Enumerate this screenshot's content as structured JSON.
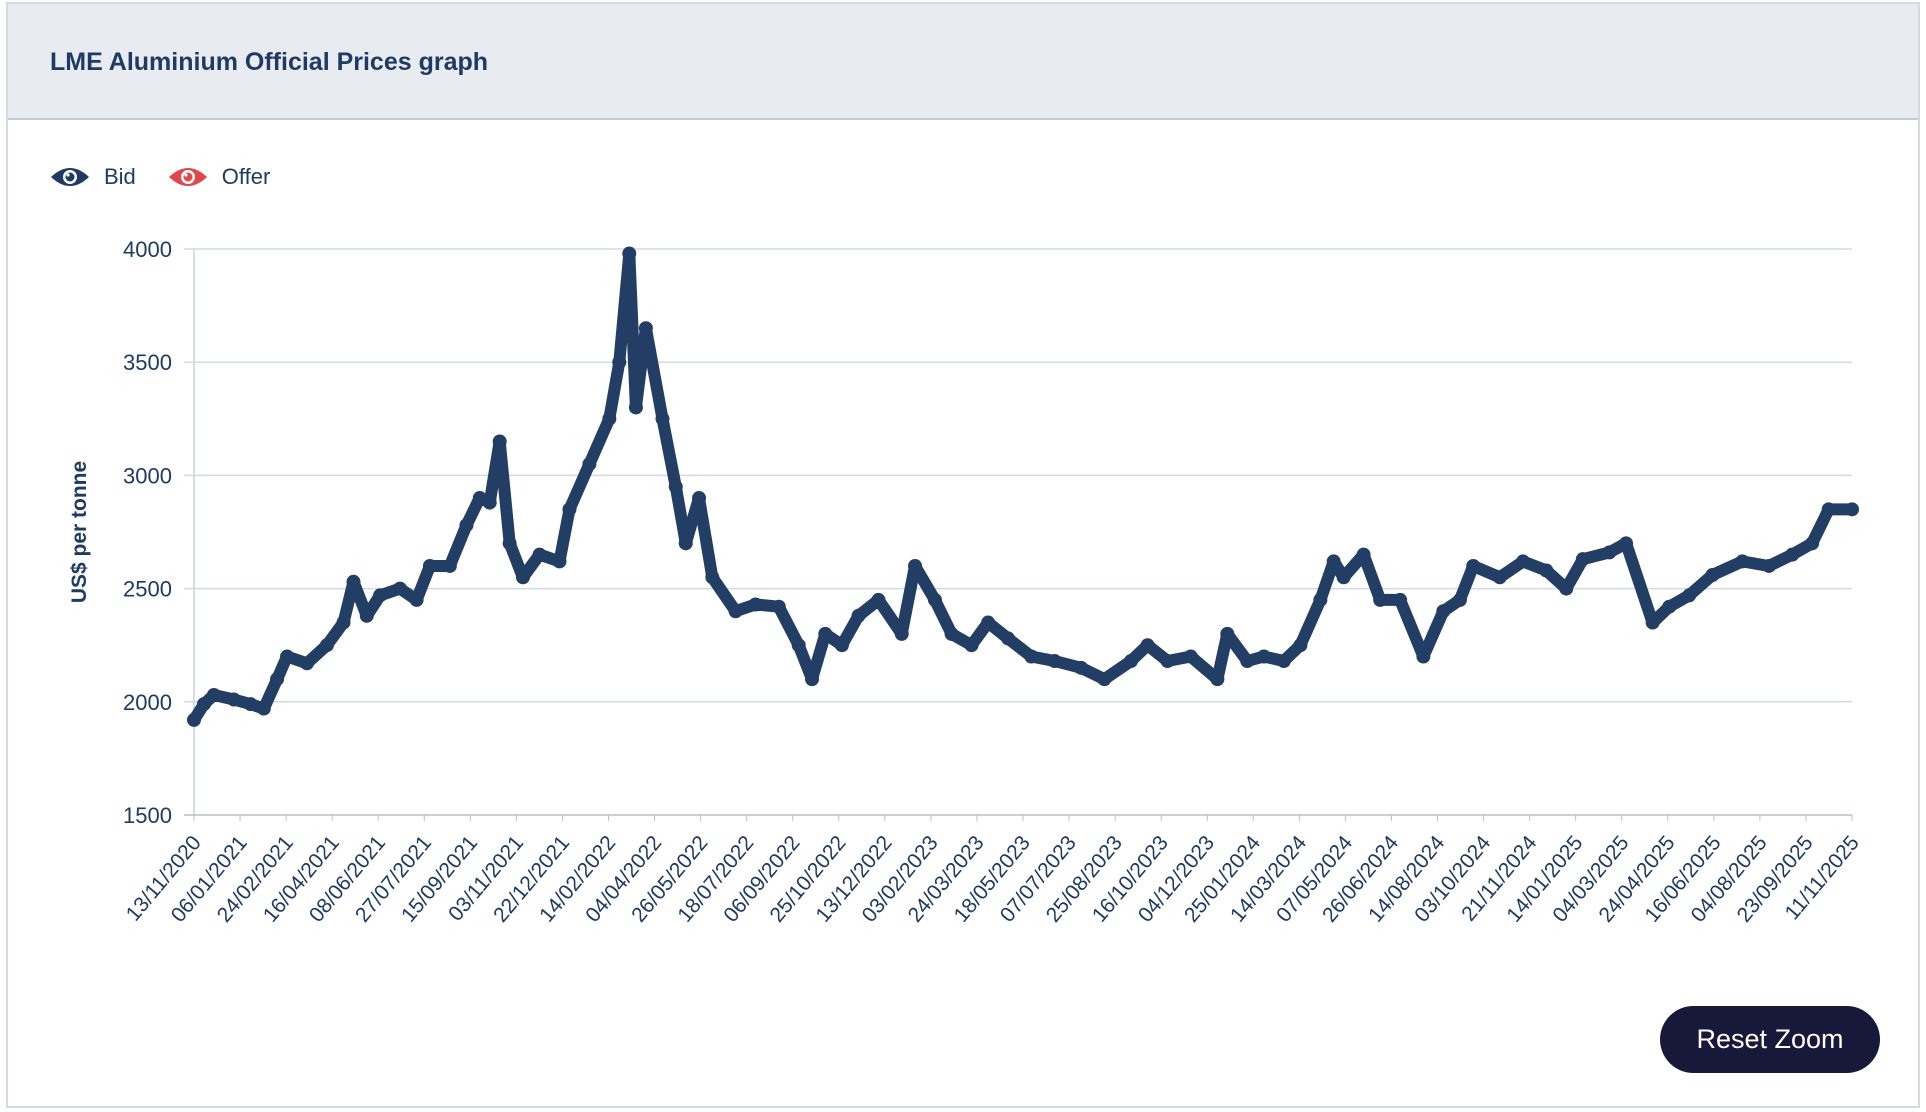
{
  "header": {
    "title": "LME Aluminium Official Prices graph"
  },
  "legend": [
    {
      "label": "Bid",
      "icon": "eye-icon",
      "color": "#1f3b63"
    },
    {
      "label": "Offer",
      "icon": "eye-icon",
      "color": "#e0474c"
    }
  ],
  "reset_zoom_label": "Reset Zoom",
  "chart_data": {
    "type": "line",
    "title": "LME Aluminium Official Prices graph",
    "xlabel": "",
    "ylabel": "US$ per tonne",
    "ylim": [
      1500,
      4000
    ],
    "yticks": [
      "1500",
      "2000",
      "2500",
      "3000",
      "3500",
      "4000"
    ],
    "xlim": [
      2020.87,
      2025.86
    ],
    "xticks": [
      "13/11/2020",
      "06/01/2021",
      "24/02/2021",
      "16/04/2021",
      "08/06/2021",
      "27/07/2021",
      "15/09/2021",
      "03/11/2021",
      "22/12/2021",
      "14/02/2022",
      "04/04/2022",
      "26/05/2022",
      "18/07/2022",
      "06/09/2022",
      "25/10/2022",
      "13/12/2022",
      "03/02/2023",
      "24/03/2023",
      "18/05/2023",
      "07/07/2023",
      "25/08/2023",
      "16/10/2023",
      "04/12/2023",
      "25/01/2024",
      "14/03/2024",
      "07/05/2024",
      "26/06/2024",
      "14/08/2024",
      "03/10/2024",
      "21/11/2024",
      "14/01/2025",
      "04/03/2025",
      "24/04/2025",
      "16/06/2025",
      "04/08/2025",
      "23/09/2025",
      "11/11/2025"
    ],
    "grid": true,
    "legend_position": "top-left",
    "series": [
      {
        "name": "Bid",
        "color": "#233e64",
        "points": [
          [
            2020.87,
            1920
          ],
          [
            2020.9,
            1990
          ],
          [
            2020.93,
            2030
          ],
          [
            2020.99,
            2010
          ],
          [
            2021.04,
            1990
          ],
          [
            2021.08,
            1970
          ],
          [
            2021.12,
            2100
          ],
          [
            2021.15,
            2200
          ],
          [
            2021.21,
            2170
          ],
          [
            2021.27,
            2250
          ],
          [
            2021.32,
            2350
          ],
          [
            2021.35,
            2530
          ],
          [
            2021.39,
            2380
          ],
          [
            2021.43,
            2470
          ],
          [
            2021.49,
            2500
          ],
          [
            2021.54,
            2450
          ],
          [
            2021.58,
            2600
          ],
          [
            2021.64,
            2600
          ],
          [
            2021.69,
            2780
          ],
          [
            2021.73,
            2900
          ],
          [
            2021.76,
            2880
          ],
          [
            2021.79,
            3150
          ],
          [
            2021.82,
            2700
          ],
          [
            2021.86,
            2550
          ],
          [
            2021.91,
            2650
          ],
          [
            2021.97,
            2620
          ],
          [
            2022.0,
            2850
          ],
          [
            2022.06,
            3050
          ],
          [
            2022.12,
            3250
          ],
          [
            2022.15,
            3500
          ],
          [
            2022.18,
            3980
          ],
          [
            2022.2,
            3300
          ],
          [
            2022.23,
            3650
          ],
          [
            2022.28,
            3250
          ],
          [
            2022.32,
            2950
          ],
          [
            2022.35,
            2700
          ],
          [
            2022.39,
            2900
          ],
          [
            2022.43,
            2550
          ],
          [
            2022.5,
            2400
          ],
          [
            2022.56,
            2430
          ],
          [
            2022.63,
            2420
          ],
          [
            2022.69,
            2250
          ],
          [
            2022.73,
            2100
          ],
          [
            2022.77,
            2300
          ],
          [
            2022.82,
            2250
          ],
          [
            2022.87,
            2380
          ],
          [
            2022.93,
            2450
          ],
          [
            2023.0,
            2300
          ],
          [
            2023.04,
            2600
          ],
          [
            2023.1,
            2450
          ],
          [
            2023.15,
            2300
          ],
          [
            2023.21,
            2250
          ],
          [
            2023.26,
            2350
          ],
          [
            2023.32,
            2280
          ],
          [
            2023.39,
            2200
          ],
          [
            2023.46,
            2180
          ],
          [
            2023.54,
            2150
          ],
          [
            2023.61,
            2100
          ],
          [
            2023.69,
            2180
          ],
          [
            2023.74,
            2250
          ],
          [
            2023.8,
            2180
          ],
          [
            2023.87,
            2200
          ],
          [
            2023.95,
            2100
          ],
          [
            2023.98,
            2300
          ],
          [
            2024.04,
            2180
          ],
          [
            2024.09,
            2200
          ],
          [
            2024.15,
            2180
          ],
          [
            2024.2,
            2250
          ],
          [
            2024.26,
            2450
          ],
          [
            2024.3,
            2620
          ],
          [
            2024.33,
            2550
          ],
          [
            2024.39,
            2650
          ],
          [
            2024.44,
            2450
          ],
          [
            2024.5,
            2450
          ],
          [
            2024.57,
            2200
          ],
          [
            2024.63,
            2400
          ],
          [
            2024.68,
            2450
          ],
          [
            2024.72,
            2600
          ],
          [
            2024.8,
            2550
          ],
          [
            2024.87,
            2620
          ],
          [
            2024.94,
            2580
          ],
          [
            2025.0,
            2500
          ],
          [
            2025.05,
            2630
          ],
          [
            2025.13,
            2660
          ],
          [
            2025.18,
            2700
          ],
          [
            2025.26,
            2350
          ],
          [
            2025.31,
            2420
          ],
          [
            2025.37,
            2470
          ],
          [
            2025.44,
            2560
          ],
          [
            2025.53,
            2620
          ],
          [
            2025.61,
            2600
          ],
          [
            2025.68,
            2650
          ],
          [
            2025.74,
            2700
          ],
          [
            2025.79,
            2850
          ],
          [
            2025.86,
            2850
          ]
        ]
      }
    ]
  }
}
